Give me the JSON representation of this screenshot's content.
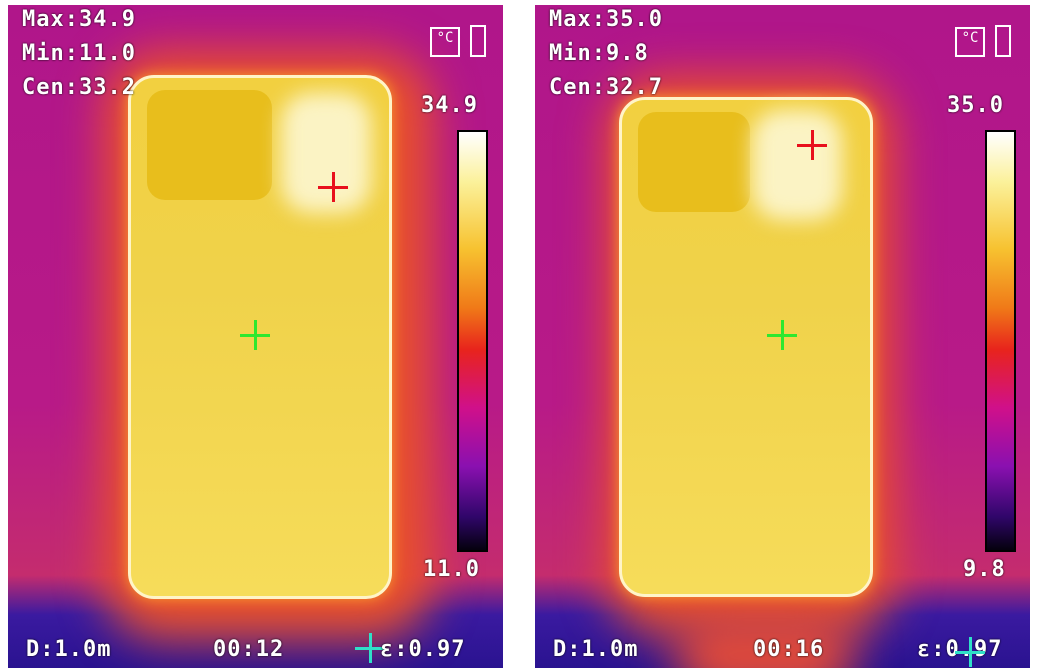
{
  "panels": [
    {
      "max": "Max:34.9",
      "min": "Min:11.0",
      "cen": "Cen:33.2",
      "scale_max": "34.9",
      "scale_min": "11.0",
      "distance": "D:1.0m",
      "time": "00:12",
      "emissivity": "ε:0.97",
      "unit_icon": "°C"
    },
    {
      "max": "Max:35.0",
      "min": "Min:9.8",
      "cen": "Cen:32.7",
      "scale_max": "35.0",
      "scale_min": "9.8",
      "distance": "D:1.0m",
      "time": "00:16",
      "emissivity": "ε:0.97",
      "unit_icon": "°C"
    }
  ],
  "colors": {
    "max_marker": "#e8101c",
    "center_marker": "#2ee82e",
    "min_marker": "#30e0c8"
  },
  "icons": [
    "celsius-unit-icon",
    "battery-icon",
    "crosshair-icon"
  ]
}
